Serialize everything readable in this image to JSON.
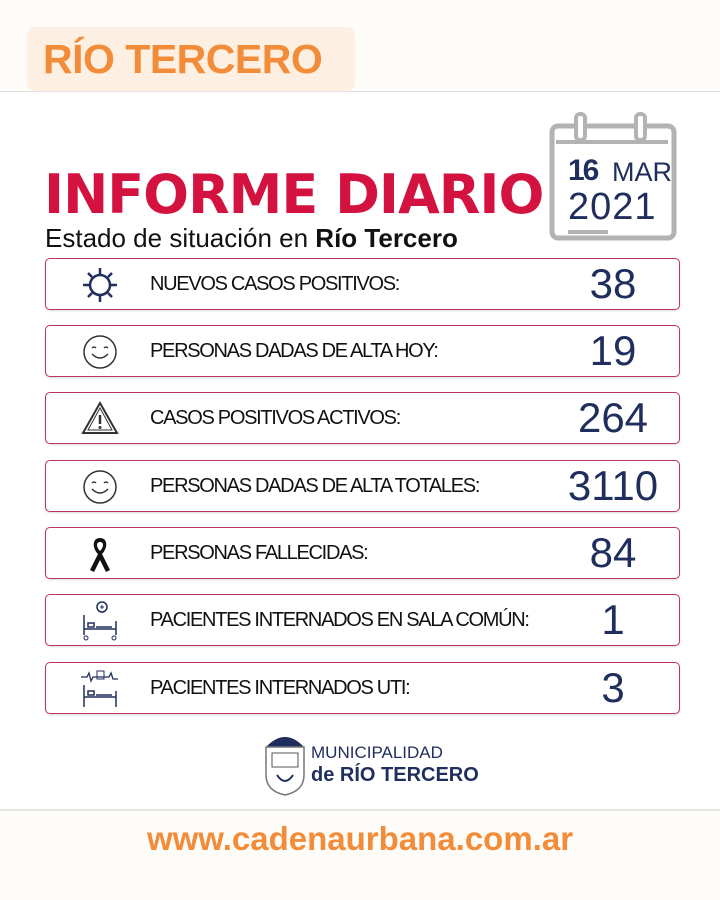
{
  "header": {
    "tag": "RÍO TERCERO",
    "title": "INFORME DIARIO",
    "subtitle_prefix": "Estado de situación en ",
    "subtitle_bold": "Río Tercero"
  },
  "date": {
    "day": "16",
    "month": "MAR",
    "year": "2021"
  },
  "colors": {
    "orange": "#f28c38",
    "red": "#d3123f",
    "navy": "#1f2e5c",
    "row_border": "#b9375a"
  },
  "rows": [
    {
      "icon": "virus-icon",
      "label": "NUEVOS CASOS POSITIVOS:",
      "value": "38"
    },
    {
      "icon": "smile-icon",
      "label": "PERSONAS DADAS DE ALTA HOY:",
      "value": "19"
    },
    {
      "icon": "warning-icon",
      "label": "CASOS POSITIVOS ACTIVOS:",
      "value": "264"
    },
    {
      "icon": "smile-icon",
      "label": "PERSONAS DADAS DE ALTA TOTALES:",
      "value": "3110"
    },
    {
      "icon": "mourning-ribbon-icon",
      "label": "PERSONAS FALLECIDAS:",
      "value": "84"
    },
    {
      "icon": "hospital-bed-icon",
      "label": "PACIENTES INTERNADOS EN SALA COMÚN:",
      "value": "1"
    },
    {
      "icon": "icu-bed-icon",
      "label": "PACIENTES INTERNADOS UTI:",
      "value": "3"
    }
  ],
  "footer": {
    "logo_line1": "MUNICIPALIDAD",
    "logo_line2": "de RÍO TERCERO",
    "url": "www.cadenaurbana.com.ar"
  }
}
